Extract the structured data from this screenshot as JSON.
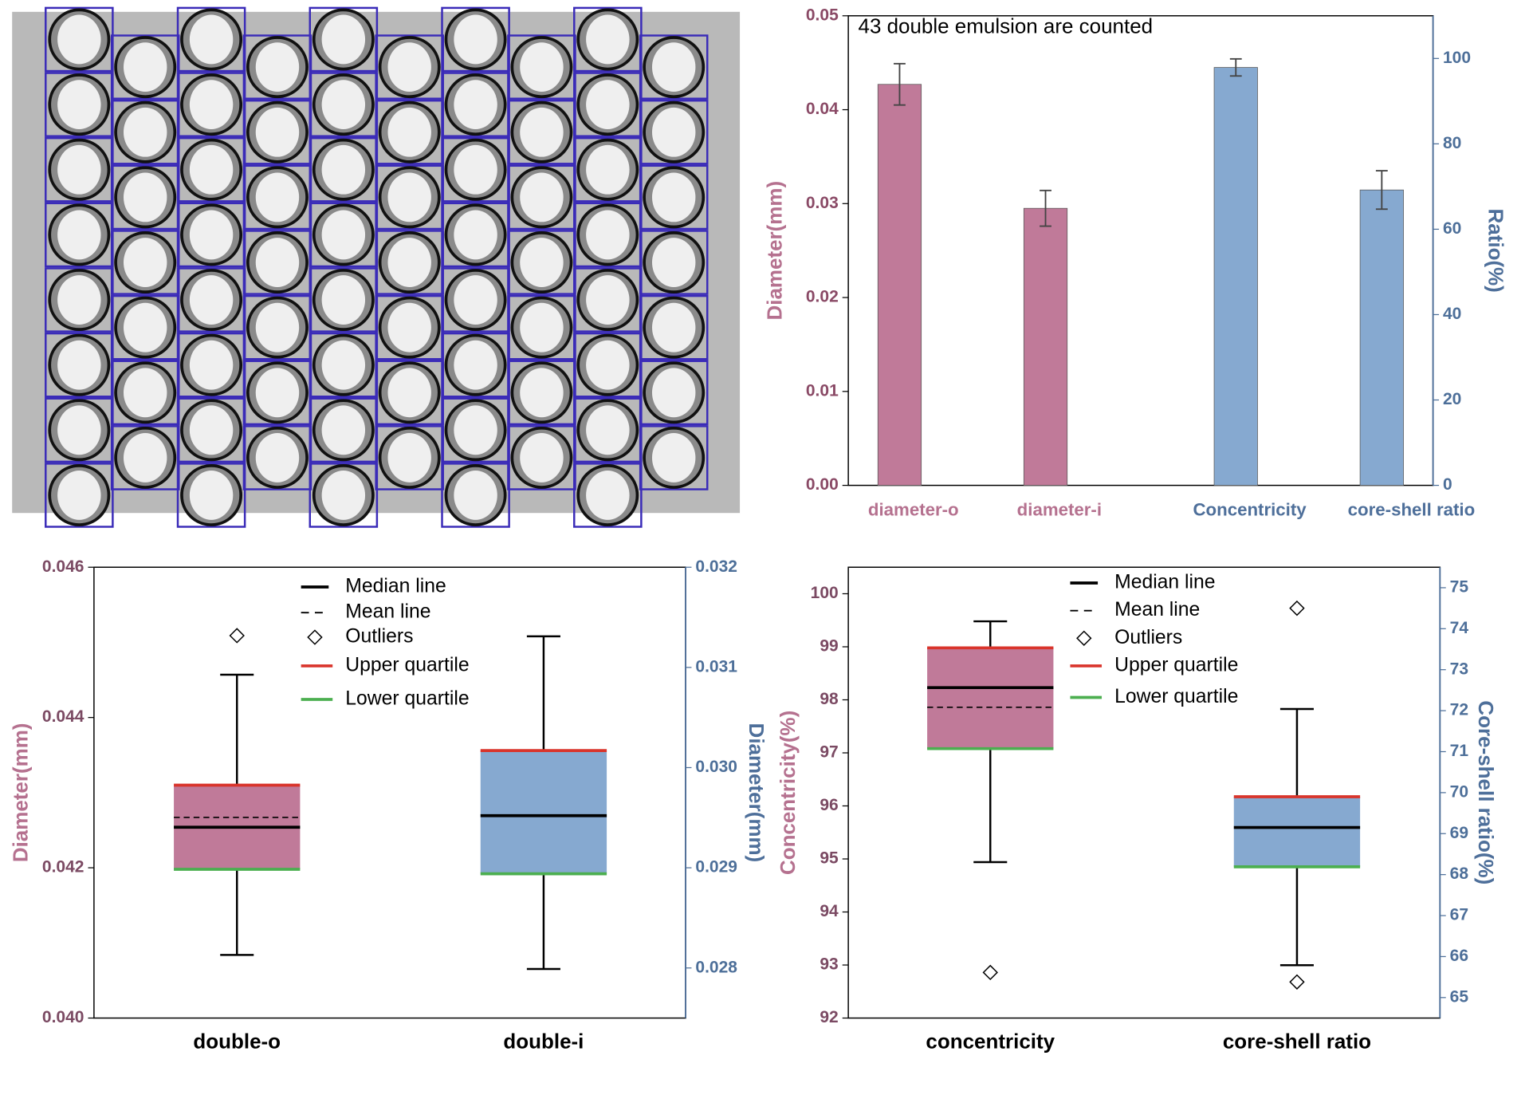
{
  "chart_data": [
    {
      "type": "bar",
      "annotation": "43 double emulsion are counted",
      "ylabel": "Diameter(mm)",
      "y2label": "Ratio(%)",
      "categories": [
        "diameter-o",
        "diameter-i",
        "Concentricity",
        "core-shell ratio"
      ],
      "values": [
        0.0427,
        0.0295,
        97.9,
        69.2
      ],
      "errors": [
        0.0022,
        0.0019,
        2,
        4.5
      ],
      "axes": [
        "y",
        "y",
        "y2",
        "y2"
      ],
      "colors": [
        "#c07a99",
        "#c07a99",
        "#86a9d0",
        "#86a9d0"
      ],
      "ylim": [
        0,
        0.05
      ],
      "yticks": [
        {
          "value": 0,
          "label": "0.00"
        },
        0.01,
        0.02,
        0.03,
        0.04,
        0.05
      ],
      "y2lim": [
        0,
        110
      ],
      "y2ticks": [
        0,
        20,
        40,
        60,
        80,
        100
      ]
    },
    {
      "type": "box",
      "ylabel": "Diameter(mm)",
      "y2label": "Diameter(mm)",
      "legend": [
        "Median line",
        "Mean line",
        "Outliers",
        "Upper quartile",
        "Lower quartile"
      ],
      "q3_color": "#d9342b",
      "q1_color": "#4caf50",
      "ylim": [
        0.04,
        0.046
      ],
      "yticks": [
        {
          "value": 0.04,
          "label": "0.040"
        },
        {
          "value": 0.042,
          "label": "0.042"
        },
        {
          "value": 0.044,
          "label": "0.044"
        },
        {
          "value": 0.046,
          "label": "0.046"
        }
      ],
      "y2lim": [
        0.0275,
        0.032
      ],
      "y2ticks": [
        {
          "value": 0.028,
          "label": "0.028"
        },
        {
          "value": 0.029,
          "label": "0.029"
        },
        {
          "value": 0.03,
          "label": "0.030"
        },
        {
          "value": 0.031,
          "label": "0.031"
        },
        {
          "value": 0.032,
          "label": "0.032"
        }
      ],
      "boxes": [
        {
          "name": "double-o",
          "axis": "y",
          "color": "#c07a99",
          "whisker_low": 0.04084,
          "q1": 0.04198,
          "median": 0.04254,
          "mean": 0.04267,
          "q3": 0.0431,
          "whisker_high": 0.04457,
          "outliers": [
            0.04509
          ]
        },
        {
          "name": "double-i",
          "axis": "y2",
          "color": "#86a9d0",
          "whisker_low": 0.02799,
          "q1": 0.02894,
          "median": 0.02952,
          "q3": 0.03017,
          "whisker_high": 0.03131,
          "outliers": []
        }
      ]
    },
    {
      "type": "box",
      "ylabel": "Concentricity(%)",
      "y2label": "Core-shell ratio(%)",
      "legend": [
        "Median line",
        "Mean line",
        "Outliers",
        "Upper quartile",
        "Lower quartile"
      ],
      "q3_color": "#d9342b",
      "q1_color": "#4caf50",
      "ylim": [
        92,
        100.5
      ],
      "yticks": [
        92,
        93,
        94,
        95,
        96,
        97,
        98,
        99,
        100
      ],
      "y2lim": [
        64.5,
        75.5
      ],
      "y2ticks": [
        65,
        66,
        67,
        68,
        69,
        70,
        71,
        72,
        73,
        74,
        75
      ],
      "boxes": [
        {
          "name": "concentricity",
          "axis": "y",
          "color": "#c07a99",
          "whisker_low": 94.94,
          "q1": 97.08,
          "median": 98.23,
          "mean": 97.86,
          "q3": 98.98,
          "whisker_high": 99.48,
          "outliers": [
            92.86
          ]
        },
        {
          "name": "core-shell ratio",
          "axis": "y2",
          "color": "#86a9d0",
          "whisker_low": 65.79,
          "q1": 68.19,
          "median": 69.15,
          "q3": 69.9,
          "whisker_high": 72.04,
          "outliers": [
            74.5,
            65.38
          ]
        }
      ]
    }
  ]
}
